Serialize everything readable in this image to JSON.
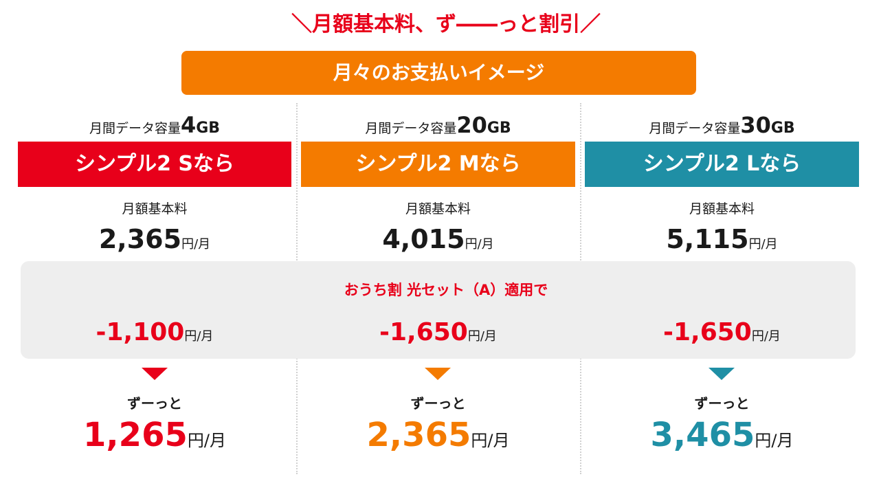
{
  "colors": {
    "red": "#e8001a",
    "orange": "#f47b00",
    "teal": "#1f8fa5",
    "panel_bg": "#eeeeee"
  },
  "headline": "＼月額基本料、ず――っと割引／",
  "image_bar": "月々のお支払いイメージ",
  "capacity_prefix": "月間データ容量",
  "base_fee_label": "月額基本料",
  "discount_label": "おうち割 光セット（A）適用で",
  "forever_label": "ずーっと",
  "unit_yen": "円",
  "unit_per_month": "/月",
  "plans": [
    {
      "capacity_value": "4",
      "capacity_unit": "GB",
      "name": "シンプル2 Sなら",
      "base_price": "2,365",
      "discount": "-1,100",
      "final_price": "1,265",
      "color": "#e8001a"
    },
    {
      "capacity_value": "20",
      "capacity_unit": "GB",
      "name": "シンプル2 Mなら",
      "base_price": "4,015",
      "discount": "-1,650",
      "final_price": "2,365",
      "color": "#f47b00"
    },
    {
      "capacity_value": "30",
      "capacity_unit": "GB",
      "name": "シンプル2 Lなら",
      "base_price": "5,115",
      "discount": "-1,650",
      "final_price": "3,465",
      "color": "#1f8fa5"
    }
  ]
}
